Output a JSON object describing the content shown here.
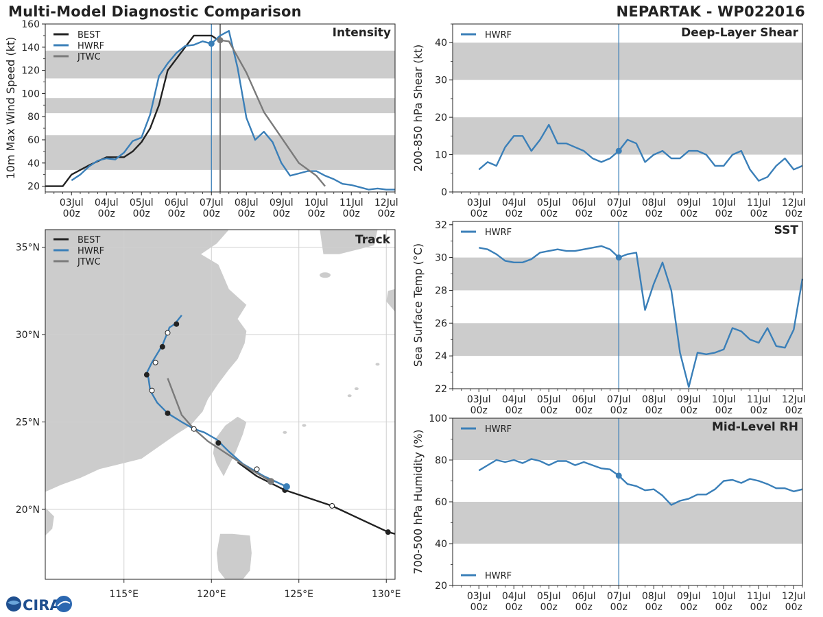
{
  "header": {
    "title": "Multi-Model Diagnostic Comparison",
    "storm": "NEPARTAK - WP022016"
  },
  "logo": {
    "text": "CIRA"
  },
  "colors": {
    "best": "#222222",
    "hwrf": "#3a7fb8",
    "jtwc": "#7a7a7a",
    "band": "#cccccc",
    "grid": "#cccccc",
    "land": "#cccccc"
  },
  "time_axis": {
    "tick_days": [
      0,
      1,
      2,
      3,
      4,
      5,
      6,
      7,
      8,
      9
    ],
    "tick_labels": [
      "03Jul\n00z",
      "04Jul\n00z",
      "05Jul\n00z",
      "06Jul\n00z",
      "07Jul\n00z",
      "08Jul\n00z",
      "09Jul\n00z",
      "10Jul\n00z",
      "11Jul\n00z",
      "12Jul\n00z"
    ],
    "current_day": 4.0,
    "jtwc_day": 4.25
  },
  "chart_data": [
    {
      "id": "intensity",
      "type": "line",
      "title": "Intensity",
      "ylabel": "10m Max Wind Speed (kt)",
      "xlim_days": [
        -0.75,
        9.25
      ],
      "ylim": [
        15,
        160
      ],
      "yticks": [
        20,
        40,
        60,
        80,
        100,
        120,
        140,
        160
      ],
      "bands": [
        [
          34,
          64
        ],
        [
          83,
          96
        ],
        [
          113,
          137
        ]
      ],
      "legend": [
        "BEST",
        "HWRF",
        "JTWC"
      ],
      "series": [
        {
          "name": "BEST",
          "color": "#222222",
          "x": [
            -0.75,
            -0.25,
            0.0,
            0.5,
            1.0,
            1.25,
            1.5,
            1.75,
            2.0,
            2.25,
            2.5,
            2.75,
            3.0,
            3.25,
            3.5,
            3.75,
            4.0,
            4.25
          ],
          "y": [
            20,
            20,
            30,
            38,
            45,
            45,
            45,
            50,
            58,
            70,
            90,
            120,
            130,
            140,
            150,
            150,
            150,
            145
          ]
        },
        {
          "name": "HWRF",
          "color": "#3a7fb8",
          "marker_day": 4.0,
          "x": [
            0.0,
            0.25,
            0.5,
            0.75,
            1.0,
            1.25,
            1.5,
            1.75,
            2.0,
            2.25,
            2.5,
            2.75,
            3.0,
            3.25,
            3.5,
            3.75,
            4.0,
            4.25,
            4.5,
            4.75,
            5.0,
            5.25,
            5.5,
            5.75,
            6.0,
            6.25,
            6.5,
            6.75,
            7.0,
            7.25,
            7.5,
            7.75,
            8.0,
            8.25,
            8.5,
            8.75,
            9.0,
            9.25
          ],
          "y": [
            25,
            30,
            37,
            42,
            44,
            43,
            49,
            59,
            62,
            82,
            115,
            126,
            135,
            141,
            142,
            145,
            143,
            150,
            154,
            122,
            79,
            60,
            67,
            58,
            40,
            29,
            31,
            33,
            33,
            29,
            26,
            22,
            21,
            19,
            17,
            18,
            17,
            17
          ]
        },
        {
          "name": "JTWC",
          "color": "#7a7a7a",
          "marker_day": 4.25,
          "x": [
            4.25,
            4.5,
            5.0,
            5.5,
            6.0,
            6.5,
            7.0,
            7.25
          ],
          "y": [
            146,
            145,
            118,
            84,
            62,
            40,
            29,
            20
          ]
        }
      ]
    },
    {
      "id": "shear",
      "type": "line",
      "title": "Deep-Layer Shear",
      "ylabel": "200-850 hPa Shear (kt)",
      "xlim_days": [
        -0.75,
        9.25
      ],
      "ylim": [
        0,
        45
      ],
      "yticks": [
        0,
        10,
        20,
        30,
        40
      ],
      "bands": [
        [
          10,
          20
        ],
        [
          30,
          40
        ]
      ],
      "legend": [
        "HWRF"
      ],
      "series": [
        {
          "name": "HWRF",
          "color": "#3a7fb8",
          "marker_day": 4.0,
          "x": [
            0.0,
            0.25,
            0.5,
            0.75,
            1.0,
            1.25,
            1.5,
            1.75,
            2.0,
            2.25,
            2.5,
            2.75,
            3.0,
            3.25,
            3.5,
            3.75,
            4.0,
            4.25,
            4.5,
            4.75,
            5.0,
            5.25,
            5.5,
            5.75,
            6.0,
            6.25,
            6.5,
            6.75,
            7.0,
            7.25,
            7.5,
            7.75,
            8.0,
            8.25,
            8.5,
            8.75,
            9.0,
            9.25
          ],
          "y": [
            6,
            8,
            7,
            12,
            15,
            15,
            11,
            14,
            18,
            13,
            13,
            12,
            11,
            9,
            8,
            9,
            11,
            14,
            13,
            8,
            10,
            11,
            9,
            9,
            11,
            11,
            10,
            7,
            7,
            10,
            11,
            6,
            3,
            4,
            7,
            9,
            6,
            7
          ]
        }
      ]
    },
    {
      "id": "sst",
      "type": "line",
      "title": "SST",
      "ylabel": "Sea Surface Temp (°C)",
      "xlim_days": [
        -0.75,
        9.25
      ],
      "ylim": [
        22,
        32.2
      ],
      "yticks": [
        22,
        24,
        26,
        28,
        30,
        32
      ],
      "bands": [
        [
          24,
          26
        ],
        [
          28,
          30
        ]
      ],
      "legend": [
        "HWRF"
      ],
      "series": [
        {
          "name": "HWRF",
          "color": "#3a7fb8",
          "marker_day": 4.0,
          "x": [
            0.0,
            0.25,
            0.5,
            0.75,
            1.0,
            1.25,
            1.5,
            1.75,
            2.0,
            2.25,
            2.5,
            2.75,
            3.0,
            3.25,
            3.5,
            3.75,
            4.0,
            4.25,
            4.5,
            4.75,
            5.0,
            5.25,
            5.5,
            5.75,
            6.0,
            6.25,
            6.5,
            6.75,
            7.0,
            7.25,
            7.5,
            7.75,
            8.0,
            8.25,
            8.5,
            8.75,
            9.0,
            9.25
          ],
          "y": [
            30.6,
            30.5,
            30.2,
            29.8,
            29.7,
            29.7,
            29.9,
            30.3,
            30.4,
            30.5,
            30.4,
            30.4,
            30.5,
            30.6,
            30.7,
            30.5,
            30.0,
            30.2,
            30.3,
            26.8,
            28.4,
            29.7,
            28.0,
            24.2,
            22.1,
            24.2,
            24.1,
            24.2,
            24.4,
            25.7,
            25.5,
            25.0,
            24.8,
            25.7,
            24.6,
            24.5,
            25.6,
            28.7
          ]
        }
      ]
    },
    {
      "id": "rh",
      "type": "line",
      "title": "Mid-Level RH",
      "ylabel": "700-500 hPa Humidity (%)",
      "xlim_days": [
        -0.75,
        9.25
      ],
      "ylim": [
        20,
        100
      ],
      "yticks": [
        20,
        40,
        60,
        80,
        100
      ],
      "bands": [
        [
          40,
          60
        ],
        [
          80,
          100
        ]
      ],
      "legend": [
        "HWRF"
      ],
      "series": [
        {
          "name": "HWRF",
          "color": "#3a7fb8",
          "marker_day": 4.0,
          "x": [
            0.0,
            0.25,
            0.5,
            0.75,
            1.0,
            1.25,
            1.5,
            1.75,
            2.0,
            2.25,
            2.5,
            2.75,
            3.0,
            3.25,
            3.5,
            3.75,
            4.0,
            4.25,
            4.5,
            4.75,
            5.0,
            5.25,
            5.5,
            5.75,
            6.0,
            6.25,
            6.5,
            6.75,
            7.0,
            7.25,
            7.5,
            7.75,
            8.0,
            8.25,
            8.5,
            8.75,
            9.0,
            9.25
          ],
          "y": [
            75,
            77.5,
            80,
            79,
            80,
            78.5,
            80.5,
            79.5,
            77.5,
            79.5,
            79.5,
            77.5,
            79,
            77.5,
            76,
            75.5,
            72.5,
            68.5,
            67.5,
            65.5,
            66,
            63,
            58.5,
            60.5,
            61.5,
            63.5,
            63.5,
            66,
            70,
            70.5,
            69,
            71,
            70,
            68.5,
            66.5,
            66.5,
            65,
            66
          ]
        }
      ]
    },
    {
      "id": "track",
      "type": "line",
      "title": "Track",
      "lon_range": [
        110.5,
        130.5
      ],
      "lat_range": [
        16.0,
        36.0
      ],
      "lon_ticks": [
        115,
        120,
        125,
        130
      ],
      "lon_tick_labels": [
        "115°E",
        "120°E",
        "125°E",
        "130°E"
      ],
      "lat_ticks": [
        20,
        25,
        30,
        35
      ],
      "lat_tick_labels": [
        "20°N",
        "25°N",
        "30°N",
        "35°N"
      ],
      "legend": [
        "BEST",
        "HWRF",
        "JTWC"
      ],
      "series": [
        {
          "name": "BEST",
          "color": "#222222",
          "lon": [
            130.5,
            130.1,
            126.9,
            124.2,
            122.6,
            121.5
          ],
          "lat": [
            18.6,
            18.7,
            20.2,
            21.1,
            21.9,
            22.7
          ],
          "points": [
            {
              "lon": 130.1,
              "lat": 18.7,
              "fill": "filled"
            },
            {
              "lon": 126.9,
              "lat": 20.2,
              "fill": "open"
            },
            {
              "lon": 124.2,
              "lat": 21.1,
              "fill": "filled"
            }
          ]
        },
        {
          "name": "HWRF",
          "color": "#3a7fb8",
          "lon": [
            124.3,
            123.0,
            121.8,
            121.0,
            120.3,
            119.6,
            119.0,
            118.3,
            117.5,
            116.9,
            116.5,
            116.4,
            116.3,
            116.6,
            116.9,
            117.2,
            117.4,
            117.5,
            117.6,
            117.9,
            118.3
          ],
          "lat": [
            21.3,
            21.9,
            22.6,
            23.3,
            24.0,
            24.4,
            24.6,
            25.0,
            25.5,
            26.1,
            26.8,
            27.5,
            27.8,
            28.4,
            28.9,
            29.4,
            29.9,
            30.1,
            30.4,
            30.6,
            31.1
          ],
          "points": [
            {
              "lon": 124.3,
              "lat": 21.3,
              "fill": "marker"
            },
            {
              "lon": 122.6,
              "lat": 22.3,
              "fill": "open"
            },
            {
              "lon": 120.4,
              "lat": 23.8,
              "fill": "filled"
            },
            {
              "lon": 119.0,
              "lat": 24.6,
              "fill": "open"
            },
            {
              "lon": 117.5,
              "lat": 25.5,
              "fill": "filled"
            },
            {
              "lon": 116.6,
              "lat": 26.8,
              "fill": "open"
            },
            {
              "lon": 116.3,
              "lat": 27.7,
              "fill": "filled"
            },
            {
              "lon": 116.8,
              "lat": 28.4,
              "fill": "open"
            },
            {
              "lon": 117.2,
              "lat": 29.3,
              "fill": "filled"
            },
            {
              "lon": 117.5,
              "lat": 30.1,
              "fill": "open"
            },
            {
              "lon": 118.0,
              "lat": 30.6,
              "fill": "filled"
            }
          ]
        },
        {
          "name": "JTWC",
          "color": "#7a7a7a",
          "lon": [
            123.4,
            122.2,
            121.0,
            119.8,
            119.0,
            118.3,
            117.5
          ],
          "lat": [
            21.6,
            22.3,
            23.1,
            23.9,
            24.6,
            25.4,
            27.5
          ],
          "points": [
            {
              "lon": 123.4,
              "lat": 21.6,
              "fill": "marker"
            }
          ]
        }
      ]
    }
  ]
}
